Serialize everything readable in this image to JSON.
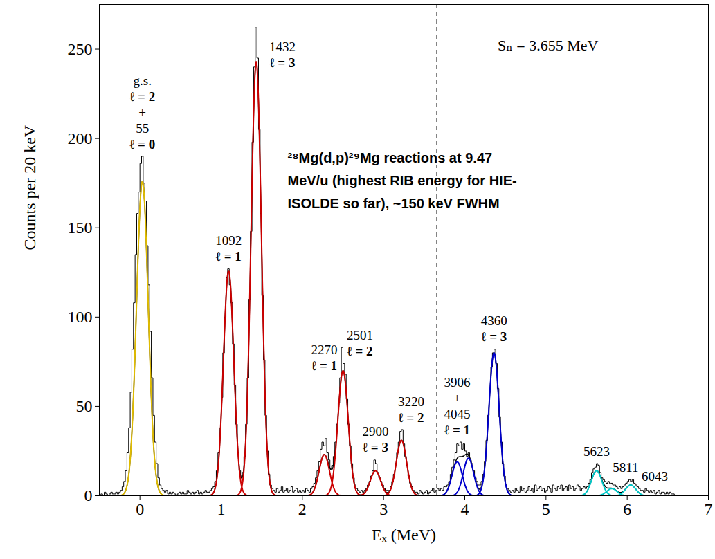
{
  "chart_data": {
    "type": "histogram",
    "xlabel": "Eₓ (MeV)",
    "ylabel": "Counts per 20 keV",
    "color": "#000000",
    "xlim": [
      -0.5,
      7
    ],
    "xticks": [
      0,
      1,
      2,
      3,
      4,
      5,
      6,
      7
    ],
    "ylim": [
      0,
      275
    ],
    "yticks": [
      0,
      50,
      100,
      150,
      200,
      250
    ],
    "bin_start": -0.5,
    "bin_width": 0.02,
    "counts": [
      0,
      1,
      0,
      2,
      1,
      0,
      1,
      2,
      1,
      1,
      2,
      1,
      2,
      3,
      5,
      8,
      14,
      24,
      38,
      58,
      82,
      108,
      135,
      158,
      170,
      186,
      190,
      175,
      165,
      140,
      118,
      92,
      66,
      45,
      30,
      18,
      10,
      6,
      4,
      3,
      2,
      3,
      1,
      2,
      1,
      2,
      1,
      0,
      1,
      2,
      1,
      2,
      1,
      1,
      3,
      2,
      1,
      2,
      1,
      2,
      3,
      1,
      2,
      1,
      2,
      3,
      2,
      2,
      3,
      4,
      5,
      8,
      14,
      24,
      38,
      55,
      80,
      100,
      122,
      127,
      118,
      108,
      85,
      62,
      40,
      24,
      14,
      11,
      13,
      22,
      40,
      66,
      110,
      148,
      198,
      240,
      262,
      245,
      205,
      158,
      112,
      76,
      45,
      25,
      12,
      6,
      4,
      3,
      2,
      4,
      2,
      3,
      5,
      2,
      3,
      4,
      2,
      3,
      5,
      2,
      3,
      4,
      2,
      3,
      2,
      3,
      2,
      4,
      3,
      2,
      4,
      5,
      7,
      10,
      14,
      19,
      26,
      30,
      28,
      32,
      24,
      20,
      15,
      17,
      22,
      30,
      40,
      52,
      66,
      83,
      74,
      68,
      54,
      40,
      28,
      18,
      10,
      6,
      4,
      3,
      2,
      3,
      2,
      3,
      4,
      6,
      8,
      11,
      14,
      20,
      18,
      13,
      10,
      8,
      6,
      4,
      3,
      3,
      3,
      5,
      8,
      12,
      18,
      24,
      30,
      36,
      37,
      29,
      22,
      17,
      11,
      7,
      5,
      3,
      2,
      2,
      1,
      3,
      2,
      1,
      2,
      3,
      1,
      2,
      3,
      4,
      2,
      3,
      4,
      3,
      4,
      3,
      5,
      5,
      6,
      8,
      12,
      16,
      20,
      24,
      29,
      28,
      30,
      26,
      29,
      25,
      22,
      24,
      20,
      18,
      14,
      10,
      8,
      6,
      6,
      8,
      12,
      19,
      31,
      45,
      58,
      72,
      80,
      82,
      74,
      60,
      44,
      30,
      18,
      11,
      6,
      4,
      3,
      2,
      3,
      2,
      4,
      3,
      2,
      5,
      3,
      4,
      2,
      3,
      5,
      3,
      4,
      2,
      6,
      3,
      4,
      5,
      3,
      4,
      2,
      3,
      5,
      4,
      2,
      6,
      4,
      3,
      5,
      4,
      6,
      3,
      4,
      5,
      3,
      6,
      4,
      5,
      3,
      4,
      6,
      5,
      3,
      4,
      5,
      4,
      5,
      7,
      9,
      13,
      15,
      16,
      18,
      17,
      13,
      10,
      9,
      8,
      7,
      8,
      7,
      7,
      6,
      6,
      5,
      4,
      5,
      4,
      5,
      6,
      7,
      8,
      9,
      8,
      9,
      7,
      6,
      5,
      4,
      3,
      3,
      2,
      4,
      3,
      2,
      3,
      2,
      3,
      1,
      2,
      3,
      1,
      2,
      2,
      1,
      2,
      1,
      2,
      1,
      1,
      0,
      0,
      0,
      0,
      0,
      0,
      0,
      0,
      0,
      0,
      0,
      0,
      0,
      0,
      0,
      0,
      0,
      0,
      0,
      0,
      0
    ],
    "fits": [
      {
        "center": 0.03,
        "height": 176,
        "fwhm": 0.17,
        "color": "#e0bc00",
        "label": [
          "g.s.",
          "ℓ = 2",
          "+",
          "55",
          "ℓ = 0"
        ]
      },
      {
        "center": 1.092,
        "height": 126,
        "fwhm": 0.15,
        "color": "#cc0000",
        "label": [
          "1092",
          "ℓ = 1"
        ]
      },
      {
        "center": 1.432,
        "height": 243,
        "fwhm": 0.15,
        "color": "#cc0000",
        "label": [
          "1432",
          "ℓ = 3"
        ]
      },
      {
        "center": 2.27,
        "height": 23,
        "fwhm": 0.15,
        "color": "#cc0000",
        "label": [
          "2270",
          "ℓ = 1"
        ]
      },
      {
        "center": 2.501,
        "height": 70,
        "fwhm": 0.15,
        "color": "#cc0000",
        "label": [
          "2501",
          "ℓ = 2"
        ]
      },
      {
        "center": 2.9,
        "height": 14,
        "fwhm": 0.15,
        "color": "#cc0000",
        "label": [
          "2900",
          "ℓ = 3"
        ]
      },
      {
        "center": 3.22,
        "height": 31,
        "fwhm": 0.15,
        "color": "#cc0000",
        "label": [
          "3220",
          "ℓ = 2"
        ]
      },
      {
        "center": 3.906,
        "height": 19,
        "fwhm": 0.15,
        "color": "#0000cc",
        "label": [
          "3906",
          "+",
          "4045",
          "ℓ = 1"
        ]
      },
      {
        "center": 4.045,
        "height": 21,
        "fwhm": 0.15,
        "color": "#0000cc"
      },
      {
        "center": 4.36,
        "height": 80,
        "fwhm": 0.15,
        "color": "#0000cc",
        "label": [
          "4360",
          "ℓ = 3"
        ]
      },
      {
        "center": 5.623,
        "height": 14,
        "fwhm": 0.15,
        "color": "#00c8c8",
        "label": [
          "5623"
        ]
      },
      {
        "center": 5.811,
        "height": 4,
        "fwhm": 0.15,
        "color": "#00c8c8",
        "label": [
          "5811"
        ]
      },
      {
        "center": 6.043,
        "height": 6,
        "fwhm": 0.15,
        "color": "#00c8c8",
        "label": [
          "6043"
        ]
      }
    ],
    "separation_energy": {
      "value": 3.655,
      "label": "Sₙ = 3.655 MeV",
      "line_style": "dashed"
    },
    "annotation": [
      "²⁸Mg(d,p)²⁹Mg reactions at 9.47",
      "MeV/u (highest RIB energy for HIE-",
      "ISOLDE so far), ~150 keV FWHM"
    ]
  }
}
